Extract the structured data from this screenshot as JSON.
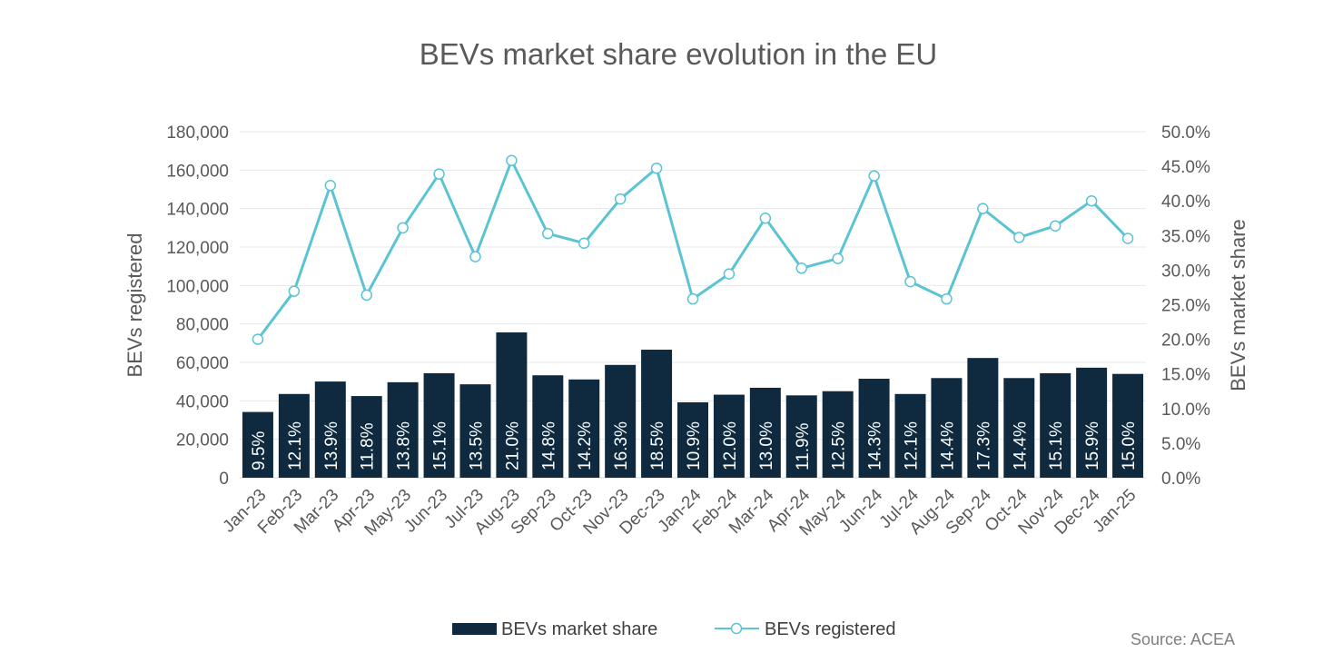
{
  "chart_data": {
    "type": "bar",
    "title": "BEVs market share evolution in the EU",
    "categories": [
      "Jan-23",
      "Feb-23",
      "Mar-23",
      "Apr-23",
      "May-23",
      "Jun-23",
      "Jul-23",
      "Aug-23",
      "Sep-23",
      "Oct-23",
      "Nov-23",
      "Dec-23",
      "Jan-24",
      "Feb-24",
      "Mar-24",
      "Apr-24",
      "May-24",
      "Jun-24",
      "Jul-24",
      "Aug-24",
      "Sep-24",
      "Oct-24",
      "Nov-24",
      "Dec-24",
      "Jan-25"
    ],
    "series": [
      {
        "name": "BEVs market share",
        "type": "bar",
        "axis": "right",
        "color": "#0f2a3f",
        "values": [
          9.5,
          12.1,
          13.9,
          11.8,
          13.8,
          15.1,
          13.5,
          21.0,
          14.8,
          14.2,
          16.3,
          18.5,
          10.9,
          12.0,
          13.0,
          11.9,
          12.5,
          14.3,
          12.1,
          14.4,
          17.3,
          14.4,
          15.1,
          15.9,
          15.0
        ],
        "labels": [
          "9.5%",
          "12.1%",
          "13.9%",
          "11.8%",
          "13.8%",
          "15.1%",
          "13.5%",
          "21.0%",
          "14.8%",
          "14.2%",
          "16.3%",
          "18.5%",
          "10.9%",
          "12.0%",
          "13.0%",
          "11.9%",
          "12.5%",
          "14.3%",
          "12.1%",
          "14.4%",
          "17.3%",
          "14.4%",
          "15.1%",
          "15.9%",
          "15.0%"
        ]
      },
      {
        "name": "BEVs registered",
        "type": "line",
        "axis": "left",
        "color": "#5bc4d3",
        "values": [
          72000,
          97000,
          152000,
          95000,
          130000,
          158000,
          115000,
          165000,
          127000,
          122000,
          145000,
          161000,
          93000,
          106000,
          135000,
          109000,
          114000,
          157000,
          102000,
          93000,
          140000,
          125000,
          131000,
          144000,
          124500
        ]
      }
    ],
    "y_left": {
      "label": "BEVs registered",
      "range": [
        0,
        180000
      ],
      "ticks": [
        "0",
        "20,000",
        "40,000",
        "60,000",
        "80,000",
        "100,000",
        "120,000",
        "140,000",
        "160,000",
        "180,000"
      ]
    },
    "y_right": {
      "label": "BEVs market share",
      "range": [
        0,
        50
      ],
      "ticks": [
        "0.0%",
        "5.0%",
        "10.0%",
        "15.0%",
        "20.0%",
        "25.0%",
        "30.0%",
        "35.0%",
        "40.0%",
        "45.0%",
        "50.0%"
      ]
    },
    "grid": true,
    "legend": "bottom-center",
    "source": "Source: ACEA"
  }
}
